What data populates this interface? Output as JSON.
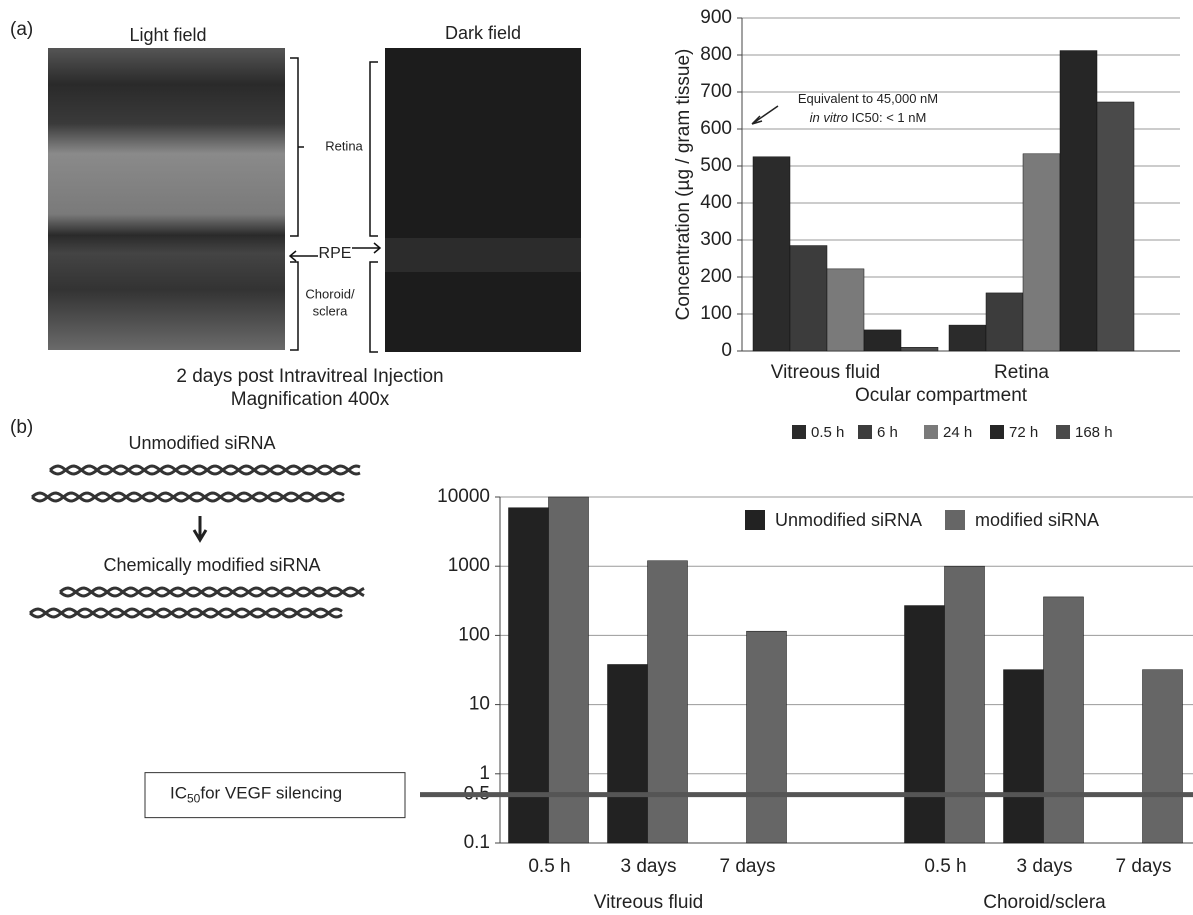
{
  "panel_a": {
    "label": "(a)",
    "light_field": "Light field",
    "dark_field": "Dark field",
    "retina": "Retina",
    "rpe": "RPE",
    "choroid": [
      "Choroid/",
      "sclera"
    ],
    "caption": [
      "2 days post Intravitreal Injection",
      "Magnification 400x"
    ]
  },
  "panel_b": {
    "label": "(b)",
    "unmodified": "Unmodified siRNA",
    "modified": "Chemically modified siRNA"
  },
  "chart_data": [
    {
      "type": "bar",
      "ylabel": "Concentration (µg / gram tissue)",
      "xlabel": "Ocular compartment",
      "categories": [
        "Vitreous fluid",
        "Retina"
      ],
      "series": [
        {
          "name": "0.5 h",
          "color": "#2b2b2b",
          "values": [
            525,
            70
          ]
        },
        {
          "name": "6 h",
          "color": "#3c3c3c",
          "values": [
            285,
            157
          ]
        },
        {
          "name": "24 h",
          "color": "#7a7a7a",
          "values": [
            222,
            533
          ]
        },
        {
          "name": "72 h",
          "color": "#262626",
          "values": [
            57,
            812
          ]
        },
        {
          "name": "168 h",
          "color": "#4a4a4a",
          "values": [
            10,
            673
          ]
        }
      ],
      "ylim": [
        0,
        900
      ],
      "yticks": [
        0,
        100,
        200,
        300,
        400,
        500,
        600,
        700,
        800,
        900
      ],
      "grid": true,
      "legend": "bottom",
      "annotation": {
        "line1": "Equivalent to 45,000 nM",
        "italic": "in vitro",
        "rest": " IC50: < 1 nM"
      }
    },
    {
      "type": "bar",
      "log_scale": true,
      "categories": [
        "0.5 h",
        "3 days",
        "7 days",
        null,
        "0.5 h",
        "3 days",
        "7 days"
      ],
      "groups": [
        "Vitreous fluid",
        "Choroid/sclera"
      ],
      "series": [
        {
          "name": "Unmodified siRNA",
          "color": "#222222",
          "values": [
            7000,
            38,
            null,
            null,
            270,
            32,
            null
          ]
        },
        {
          "name": "modified siRNA",
          "color": "#666666",
          "values": [
            10000,
            1200,
            115,
            null,
            1000,
            360,
            32
          ]
        }
      ],
      "ylim": [
        0.1,
        10000
      ],
      "yticks": [
        0.1,
        0.5,
        1,
        10,
        100,
        1000,
        10000
      ],
      "grid": true,
      "legend": "top-right",
      "threshold": {
        "value": 0.5,
        "label_main": "IC",
        "label_sub": "50",
        "label_rest": "for VEGF silencing"
      }
    }
  ]
}
